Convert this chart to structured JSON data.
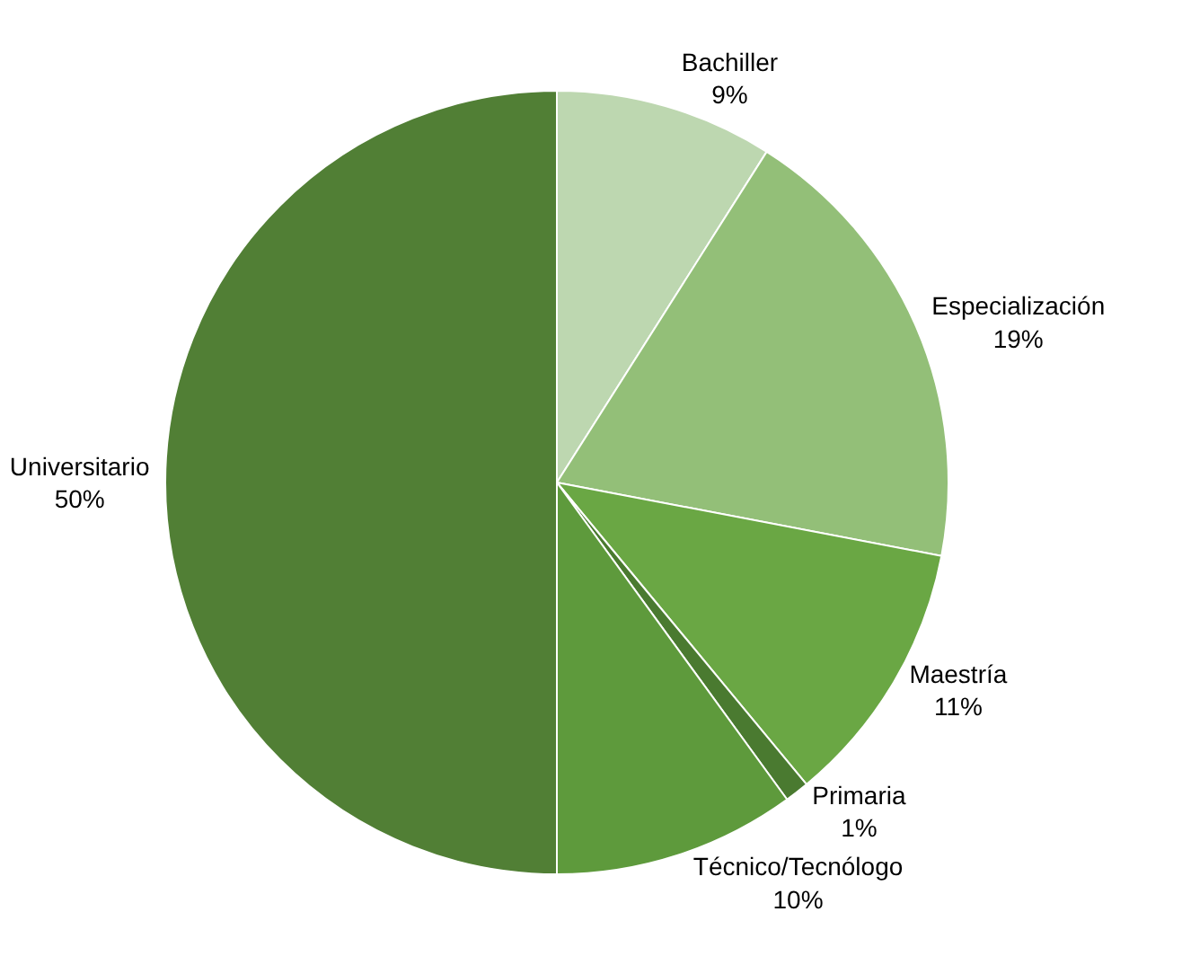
{
  "chart_data": {
    "type": "pie",
    "categories": [
      "Bachiller",
      "Especialización",
      "Maestría",
      "Primaria",
      "Técnico/Tecnólogo",
      "Universitario"
    ],
    "values": [
      9,
      19,
      11,
      1,
      10,
      50
    ],
    "value_labels": [
      "9%",
      "19%",
      "11%",
      "1%",
      "10%",
      "50%"
    ],
    "colors": [
      "#bdd7b0",
      "#93bf78",
      "#6aa744",
      "#4a7a30",
      "#5e9a3c",
      "#517f35"
    ],
    "legend": false
  }
}
